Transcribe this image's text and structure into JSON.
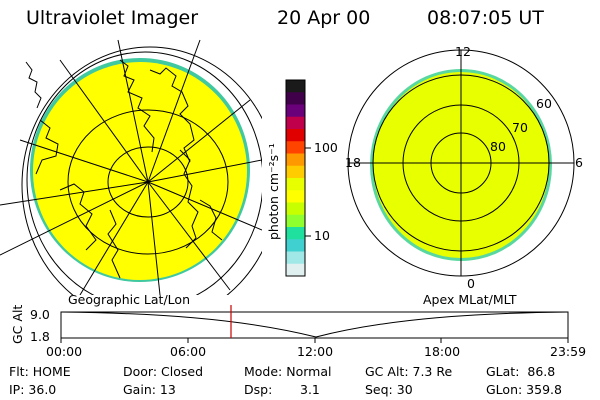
{
  "header": {
    "instrument": "Ultraviolet Imager",
    "date": "20 Apr 00",
    "time": "08:07:05 UT"
  },
  "colorbar": {
    "unit_label": "photon cm⁻²s⁻¹",
    "tick_labels": [
      "100",
      "10"
    ],
    "colors": [
      "#1a1a1a",
      "#40004a",
      "#6a007a",
      "#c0004a",
      "#e00000",
      "#ff4400",
      "#ff9900",
      "#ffcc00",
      "#e8ff00",
      "#ffff00",
      "#c8ff00",
      "#90ff30",
      "#20e0a0",
      "#40d0d0",
      "#a0e8e8",
      "#e0f0f0"
    ]
  },
  "left_map": {
    "label": "Geographic Lat/Lon",
    "fill_color": "#ffff00",
    "edge_color": "#40c8a0"
  },
  "right_map": {
    "label": "Apex MLat/MLT",
    "mlt_labels": {
      "top": "12",
      "left": "18",
      "right": "6",
      "bottom": "0"
    },
    "mlat_labels": [
      "60",
      "70",
      "80"
    ],
    "fill_color": "#e8ff00"
  },
  "altitude_plot": {
    "ylabel": "GC Alt",
    "y_ticks": [
      "9.0",
      "1.8"
    ],
    "x_ticks": [
      "00:00",
      "06:00",
      "12:00",
      "18:00",
      "23:59"
    ],
    "marker_color": "#cc0000",
    "marker_time": "08:07"
  },
  "info": {
    "flt": "Flt: HOME",
    "ip": "IP: 36.0",
    "door": "Door: Closed",
    "gain": "Gain: 13",
    "mode": "Mode: Normal",
    "dsp_label": "Dsp:",
    "dsp_value": "3.1",
    "gc_alt": "GC Alt: 7.3 Re",
    "seq": "Seq: 30",
    "glat": "GLat:  86.8",
    "glon": "GLon: 359.8"
  }
}
